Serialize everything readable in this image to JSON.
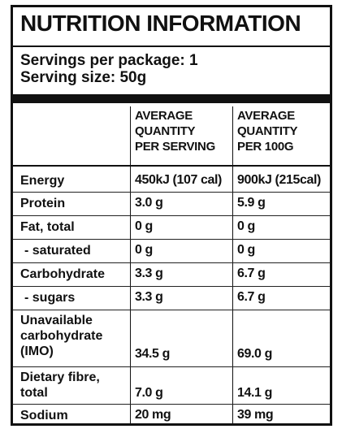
{
  "title": "NUTRITION INFORMATION",
  "servings_per_package": "Servings per package: 1",
  "serving_size": "Serving size: 50g",
  "columns": {
    "per_serving": [
      "AVERAGE",
      "QUANTITY",
      "PER SERVING"
    ],
    "per_100g": [
      "AVERAGE",
      "QUANTITY",
      "PER 100G"
    ]
  },
  "rows": [
    {
      "label": [
        "Energy"
      ],
      "per_serving": "450kJ (107 cal)",
      "per_100g": "900kJ (215cal)"
    },
    {
      "label": [
        "Protein"
      ],
      "per_serving": "3.0 g",
      "per_100g": "5.9 g"
    },
    {
      "label": [
        "Fat, total"
      ],
      "per_serving": "0 g",
      "per_100g": "0 g"
    },
    {
      "label": [
        "- saturated"
      ],
      "per_serving": "0 g",
      "per_100g": "0 g"
    },
    {
      "label": [
        "Carbohydrate"
      ],
      "per_serving": "3.3 g",
      "per_100g": "6.7 g"
    },
    {
      "label": [
        "- sugars"
      ],
      "per_serving": "3.3 g",
      "per_100g": "6.7 g"
    },
    {
      "label": [
        "Unavailable",
        "carbohydrate",
        "(IMO)"
      ],
      "per_serving": "34.5 g",
      "per_100g": "69.0 g"
    },
    {
      "label": [
        "Dietary fibre,",
        "total"
      ],
      "per_serving": "7.0 g",
      "per_100g": "14.1 g"
    },
    {
      "label": [
        "Sodium"
      ],
      "per_serving": "20 mg",
      "per_100g": "39 mg"
    }
  ]
}
